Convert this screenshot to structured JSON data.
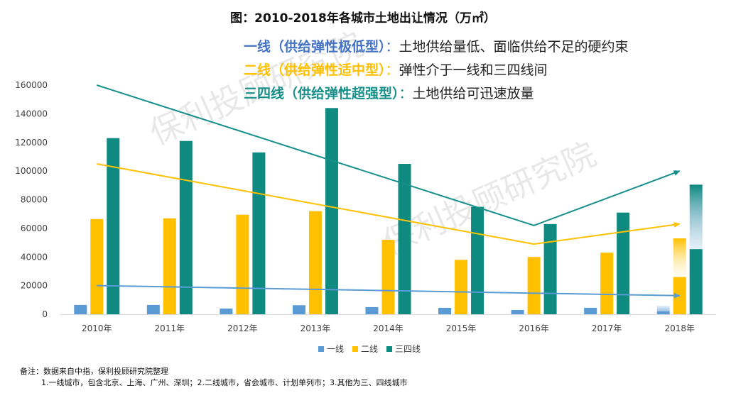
{
  "chart_data": {
    "type": "bar",
    "title": "图：2010-2018年各城市土地出让情况（万㎡）",
    "categories": [
      "2010年",
      "2011年",
      "2012年",
      "2013年",
      "2014年",
      "2015年",
      "2016年",
      "2017年",
      "2018年"
    ],
    "series": [
      {
        "name": "一线",
        "color": "#5b9bd5",
        "values": [
          6500,
          6500,
          4000,
          6300,
          5000,
          4500,
          3000,
          4500,
          2000
        ]
      },
      {
        "name": "二线",
        "color": "#ffc000",
        "values": [
          66500,
          67000,
          69500,
          72000,
          52000,
          38000,
          40000,
          43000,
          26000
        ]
      },
      {
        "name": "三四线",
        "color": "#0e8a80",
        "values": [
          123000,
          121000,
          113000,
          144000,
          105000,
          75000,
          63000,
          71000,
          45500
        ]
      }
    ],
    "projection_2018": [
      {
        "name": "一线",
        "from": 2000,
        "to": 6000
      },
      {
        "name": "二线",
        "from": 26000,
        "to": 53000
      },
      {
        "name": "三四线",
        "from": 45500,
        "to": 90500
      }
    ],
    "trend_lines": [
      {
        "name": "一线",
        "color": "#5b9bd5",
        "points": [
          [
            0,
            20000
          ],
          [
            8,
            13000
          ]
        ]
      },
      {
        "name": "二线",
        "color": "#ffc000",
        "points": [
          [
            0,
            105000
          ],
          [
            6,
            49000
          ],
          [
            8,
            63000
          ]
        ]
      },
      {
        "name": "三四线",
        "color": "#17908a",
        "points": [
          [
            0,
            160000
          ],
          [
            6,
            62000
          ],
          [
            8,
            100000
          ]
        ]
      }
    ],
    "yticks": [
      "0",
      "20000",
      "40000",
      "60000",
      "80000",
      "100000",
      "120000",
      "140000",
      "160000"
    ],
    "ylim": [
      0,
      160000
    ],
    "xlabel": "",
    "ylabel": "",
    "grid": false,
    "legend_position": "bottom"
  },
  "annotations": [
    {
      "label": "一线（供给弹性极低型）",
      "sep": "：",
      "desc": "土地供给量低、面临供给不足的硬约束",
      "color": "#4472c4"
    },
    {
      "label": "二线（供给弹性适中型）",
      "sep": "：",
      "desc": "弹性介于一线和三四线间",
      "color": "#ffc000"
    },
    {
      "label": "三四线（供给弹性超强型）",
      "sep": "：",
      "desc": "土地供给可迅速放量",
      "color": "#17908a"
    }
  ],
  "watermark": "保利投顾研究院",
  "notes": {
    "line1": "备注：数据来自中指，保利投顾研究院整理",
    "line2": "1.一线城市，包含北京、上海、广州、深圳；2.二线城市，省会城市、计划单列市；3.其他为三、四线城市"
  }
}
